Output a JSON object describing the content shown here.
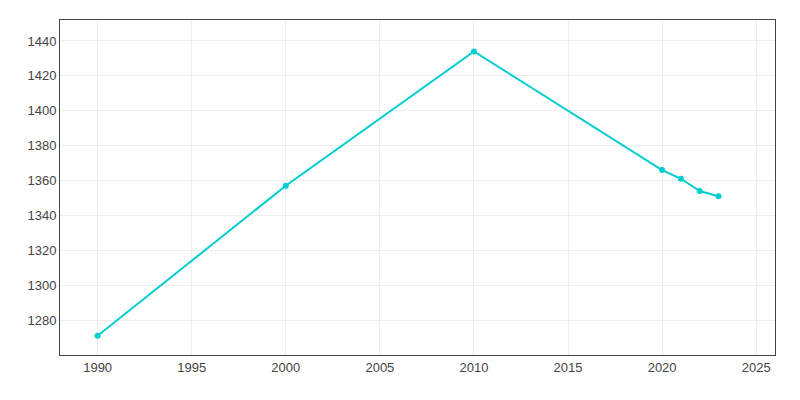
{
  "chart_data": {
    "type": "line",
    "x": [
      1990,
      2000,
      2010,
      2020,
      2021,
      2022,
      2023
    ],
    "values": [
      1271,
      1357,
      1434,
      1366,
      1361,
      1354,
      1351
    ],
    "color": "#00CED1",
    "marker": "circle",
    "line_style": "solid",
    "xlim": [
      1988,
      2026
    ],
    "ylim": [
      1260,
      1452
    ],
    "xticks": [
      1990,
      1995,
      2000,
      2005,
      2010,
      2015,
      2020,
      2025
    ],
    "yticks": [
      1280,
      1300,
      1320,
      1340,
      1360,
      1380,
      1400,
      1420,
      1440
    ],
    "grid": true
  }
}
